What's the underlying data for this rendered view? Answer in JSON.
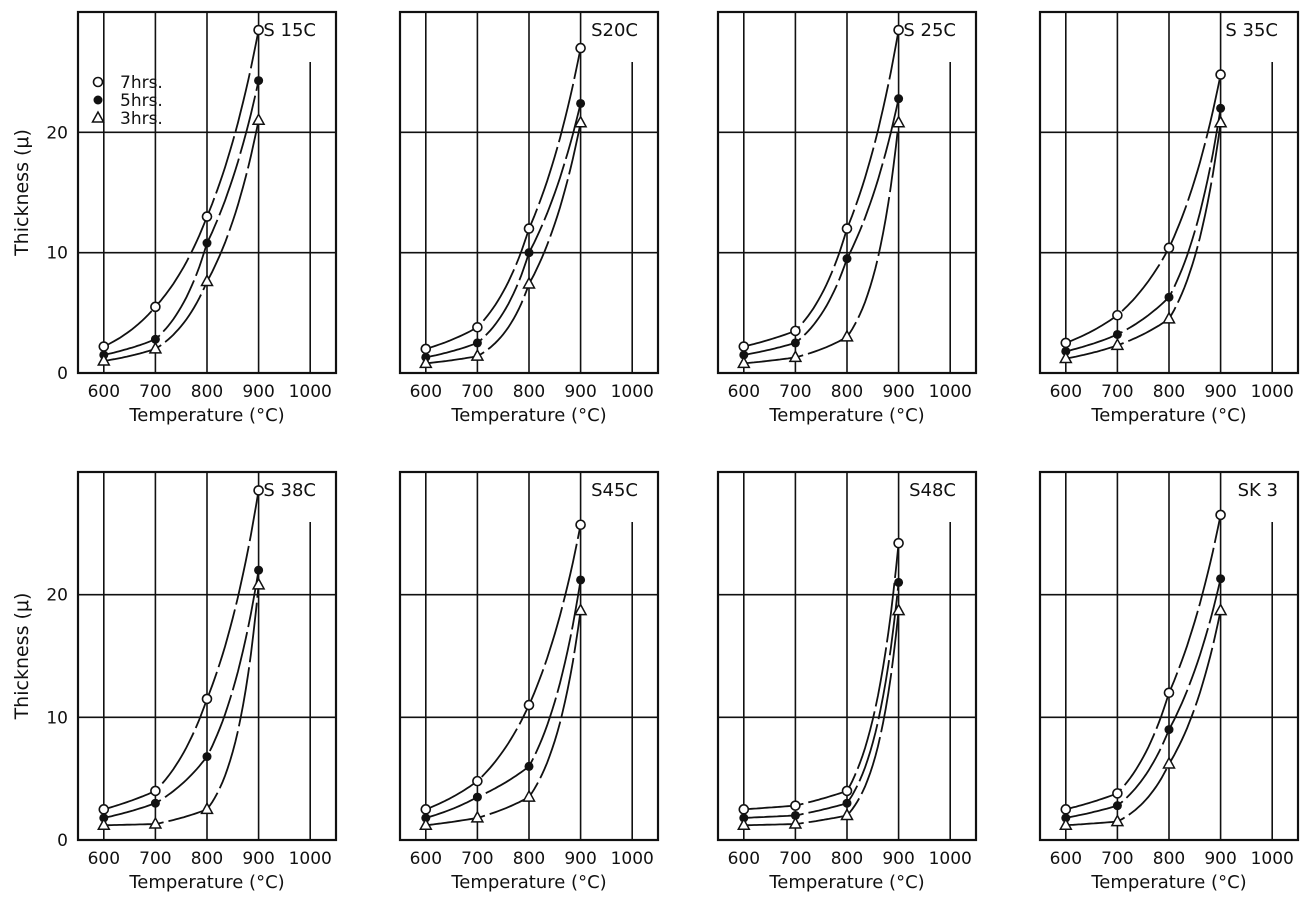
{
  "figure": {
    "ylabel": "Thickness (μ)",
    "xlabel": "Temperature (°C)",
    "legend": [
      {
        "label": "7hrs.",
        "marker": "open-circle"
      },
      {
        "label": "5hrs.",
        "marker": "filled-circle"
      },
      {
        "label": "3hrs.",
        "marker": "triangle"
      }
    ]
  },
  "chart_data": [
    {
      "type": "line",
      "title": "S 15C",
      "xlabel": "Temperature (°C)",
      "ylabel": "Thickness (μ)",
      "x": [
        600,
        700,
        800,
        900
      ],
      "xticks": [
        600,
        700,
        800,
        900,
        1000
      ],
      "yticks": [
        0,
        10,
        20
      ],
      "xlim": [
        550,
        1050
      ],
      "ylim": [
        0,
        30
      ],
      "grid": true,
      "legend": "top-left",
      "series": [
        {
          "name": "7hrs.",
          "values": [
            2.2,
            5.5,
            13.0,
            28.5
          ]
        },
        {
          "name": "5hrs.",
          "values": [
            1.5,
            2.8,
            10.8,
            24.3
          ]
        },
        {
          "name": "3hrs.",
          "values": [
            1.0,
            2.0,
            7.6,
            21.0
          ]
        }
      ]
    },
    {
      "type": "line",
      "title": "S20C",
      "xlabel": "Temperature (°C)",
      "ylabel": "",
      "x": [
        600,
        700,
        800,
        900
      ],
      "xticks": [
        600,
        700,
        800,
        900,
        1000
      ],
      "yticks": [],
      "xlim": [
        550,
        1050
      ],
      "ylim": [
        0,
        30
      ],
      "grid": true,
      "series": [
        {
          "name": "7hrs.",
          "values": [
            2.0,
            3.8,
            12.0,
            27.0
          ]
        },
        {
          "name": "5hrs.",
          "values": [
            1.3,
            2.5,
            10.0,
            22.4
          ]
        },
        {
          "name": "3hrs.",
          "values": [
            0.8,
            1.4,
            7.4,
            20.8
          ]
        }
      ]
    },
    {
      "type": "line",
      "title": "S 25C",
      "xlabel": "Temperature (°C)",
      "ylabel": "",
      "x": [
        600,
        700,
        800,
        900
      ],
      "xticks": [
        600,
        700,
        800,
        900,
        1000
      ],
      "yticks": [],
      "xlim": [
        550,
        1050
      ],
      "ylim": [
        0,
        30
      ],
      "grid": true,
      "series": [
        {
          "name": "7hrs.",
          "values": [
            2.2,
            3.5,
            12.0,
            28.5
          ]
        },
        {
          "name": "5hrs.",
          "values": [
            1.5,
            2.5,
            9.5,
            22.8
          ]
        },
        {
          "name": "3hrs.",
          "values": [
            0.8,
            1.3,
            3.0,
            20.8
          ]
        }
      ]
    },
    {
      "type": "line",
      "title": "S 35C",
      "xlabel": "Temperature (°C)",
      "ylabel": "",
      "x": [
        600,
        700,
        800,
        900
      ],
      "xticks": [
        600,
        700,
        800,
        900,
        1000
      ],
      "yticks": [],
      "xlim": [
        550,
        1050
      ],
      "ylim": [
        0,
        30
      ],
      "grid": true,
      "series": [
        {
          "name": "7hrs.",
          "values": [
            2.5,
            4.8,
            10.4,
            24.8
          ]
        },
        {
          "name": "5hrs.",
          "values": [
            1.8,
            3.2,
            6.3,
            22.0
          ]
        },
        {
          "name": "3hrs.",
          "values": [
            1.2,
            2.3,
            4.5,
            20.8
          ]
        }
      ]
    },
    {
      "type": "line",
      "title": "S 38C",
      "xlabel": "Temperature (°C)",
      "ylabel": "Thickness (μ)",
      "x": [
        600,
        700,
        800,
        900
      ],
      "xticks": [
        600,
        700,
        800,
        900,
        1000
      ],
      "yticks": [
        0,
        10,
        20
      ],
      "xlim": [
        550,
        1050
      ],
      "ylim": [
        0,
        30
      ],
      "grid": true,
      "series": [
        {
          "name": "7hrs.",
          "values": [
            2.5,
            4.0,
            11.5,
            28.5
          ]
        },
        {
          "name": "5hrs.",
          "values": [
            1.8,
            3.0,
            6.8,
            22.0
          ]
        },
        {
          "name": "3hrs.",
          "values": [
            1.2,
            1.3,
            2.5,
            20.8
          ]
        }
      ]
    },
    {
      "type": "line",
      "title": "S45C",
      "xlabel": "Temperature (°C)",
      "ylabel": "",
      "x": [
        600,
        700,
        800,
        900
      ],
      "xticks": [
        600,
        700,
        800,
        900,
        1000
      ],
      "yticks": [],
      "xlim": [
        550,
        1050
      ],
      "ylim": [
        0,
        30
      ],
      "grid": true,
      "series": [
        {
          "name": "7hrs.",
          "values": [
            2.5,
            4.8,
            11.0,
            25.7
          ]
        },
        {
          "name": "5hrs.",
          "values": [
            1.8,
            3.5,
            6.0,
            21.2
          ]
        },
        {
          "name": "3hrs.",
          "values": [
            1.2,
            1.8,
            3.5,
            18.7
          ]
        }
      ]
    },
    {
      "type": "line",
      "title": "S48C",
      "xlabel": "Temperature (°C)",
      "ylabel": "",
      "x": [
        600,
        700,
        800,
        900
      ],
      "xticks": [
        600,
        700,
        800,
        900,
        1000
      ],
      "yticks": [],
      "xlim": [
        550,
        1050
      ],
      "ylim": [
        0,
        30
      ],
      "grid": true,
      "series": [
        {
          "name": "7hrs.",
          "values": [
            2.5,
            2.8,
            4.0,
            24.2
          ]
        },
        {
          "name": "5hrs.",
          "values": [
            1.8,
            2.0,
            3.0,
            21.0
          ]
        },
        {
          "name": "3hrs.",
          "values": [
            1.2,
            1.3,
            2.0,
            18.7
          ]
        }
      ]
    },
    {
      "type": "line",
      "title": "SK 3",
      "xlabel": "Temperature (°C)",
      "ylabel": "",
      "x": [
        600,
        700,
        800,
        900
      ],
      "xticks": [
        600,
        700,
        800,
        900,
        1000
      ],
      "yticks": [],
      "xlim": [
        550,
        1050
      ],
      "ylim": [
        0,
        30
      ],
      "grid": true,
      "series": [
        {
          "name": "7hrs.",
          "values": [
            2.5,
            3.8,
            12.0,
            26.5
          ]
        },
        {
          "name": "5hrs.",
          "values": [
            1.8,
            2.8,
            9.0,
            21.3
          ]
        },
        {
          "name": "3hrs.",
          "values": [
            1.2,
            1.5,
            6.2,
            18.7
          ]
        }
      ]
    }
  ]
}
